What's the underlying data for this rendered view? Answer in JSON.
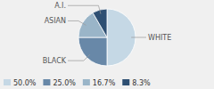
{
  "chart_data": {
    "type": "pie",
    "categories": [
      "WHITE",
      "BLACK",
      "ASIAN",
      "A.I."
    ],
    "values": [
      50.0,
      25.0,
      16.7,
      8.3
    ],
    "value_labels": [
      "50.0%",
      "25.0%",
      "16.7%",
      "8.3%"
    ],
    "colors": [
      "#c5d8e5",
      "#6888a8",
      "#9ab5c8",
      "#2e4f72"
    ],
    "legend": "bottom"
  }
}
